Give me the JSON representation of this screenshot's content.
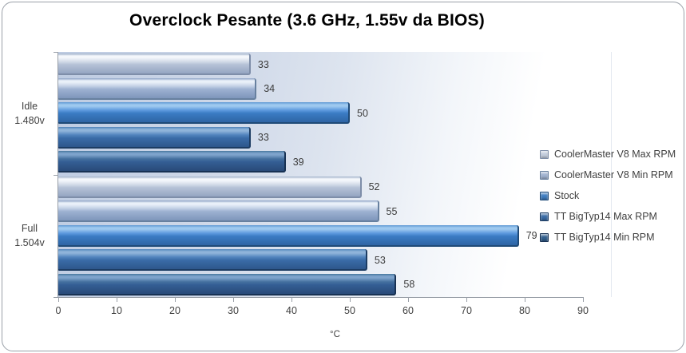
{
  "chart_data": {
    "type": "bar",
    "orientation": "horizontal",
    "title": "Overclock Pesante (3.6 GHz, 1.55v da BIOS)",
    "xlabel": "°C",
    "xlim": [
      0,
      90
    ],
    "x_ticks": [
      0,
      10,
      20,
      30,
      40,
      50,
      60,
      70,
      80,
      90
    ],
    "grid": false,
    "legend_position": "right",
    "categories": [
      {
        "lines": [
          "Idle",
          "1.480v"
        ]
      },
      {
        "lines": [
          "Full",
          "1.504v"
        ]
      }
    ],
    "series": [
      {
        "name": "CoolerMaster V8 Max RPM",
        "values": [
          33,
          52
        ],
        "colors": {
          "top": "#9fb0c8",
          "hi": "#f4f7fb",
          "light": "#d4dce9",
          "mid": "#b6c2d7",
          "dark": "#94a5c2",
          "edge": "#7e8ea9",
          "swatch": "#c3cddd"
        }
      },
      {
        "name": "CoolerMaster V8 Min RPM",
        "values": [
          34,
          55
        ],
        "colors": {
          "top": "#8ba1c4",
          "hi": "#e9f0f9",
          "light": "#c2d0e5",
          "mid": "#9db1d1",
          "dark": "#7e96bb",
          "edge": "#67809f",
          "swatch": "#a0b3d1"
        }
      },
      {
        "name": "Stock",
        "values": [
          50,
          79
        ],
        "colors": {
          "top": "#5b95d2",
          "hi": "#9ec9ef",
          "light": "#5e9ade",
          "mid": "#3b7cc4",
          "dark": "#2e64a4",
          "edge": "#1f4a77",
          "swatch": "#3f7ec2"
        }
      },
      {
        "name": "TT BigTyp14 Max RPM",
        "values": [
          33,
          53
        ],
        "colors": {
          "top": "#4f83b8",
          "hi": "#8fb4da",
          "light": "#5183bd",
          "mid": "#3a6ca8",
          "dark": "#2d568b",
          "edge": "#1c3c63",
          "swatch": "#3a6ca6"
        }
      },
      {
        "name": "TT BigTyp14 Min RPM",
        "values": [
          39,
          58
        ],
        "colors": {
          "top": "#47789f",
          "hi": "#7ea3cc",
          "light": "#44709f",
          "mid": "#345e94",
          "dark": "#294a78",
          "edge": "#183254",
          "swatch": "#33608f"
        }
      }
    ]
  }
}
